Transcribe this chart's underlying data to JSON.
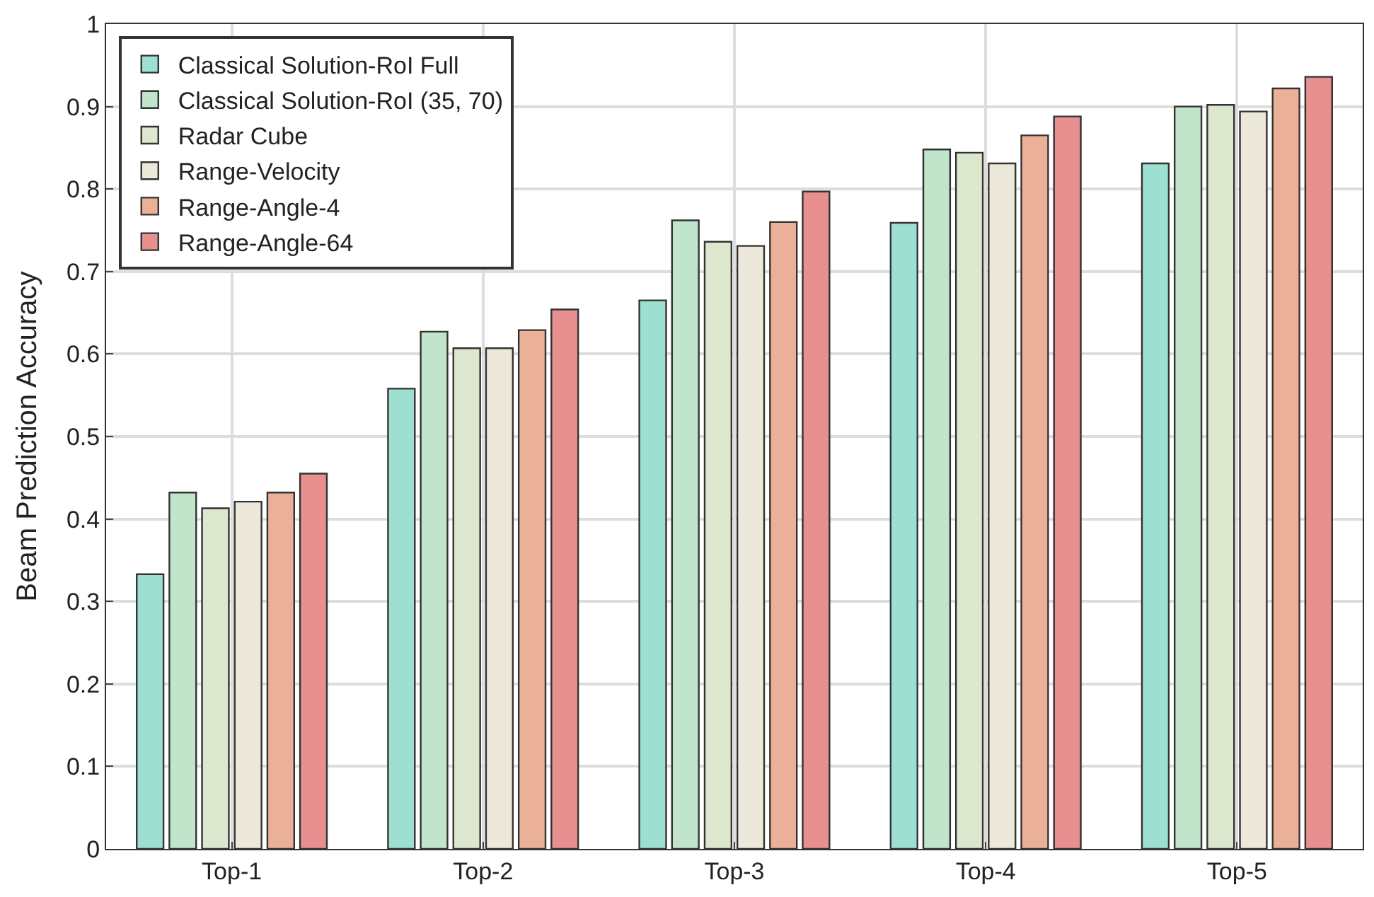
{
  "chart_data": {
    "type": "bar",
    "ylabel": "Beam Prediction Accuracy",
    "categories": [
      "Top-1",
      "Top-2",
      "Top-3",
      "Top-4",
      "Top-5"
    ],
    "series": [
      {
        "name": "Classical Solution-RoI Full",
        "color": "#9de0d2",
        "values": [
          0.333,
          0.558,
          0.665,
          0.759,
          0.831
        ]
      },
      {
        "name": "Classical Solution-RoI (35, 70)",
        "color": "#c0e5cb",
        "values": [
          0.432,
          0.627,
          0.762,
          0.848,
          0.9
        ]
      },
      {
        "name": "Radar Cube",
        "color": "#dce7cd",
        "values": [
          0.413,
          0.607,
          0.736,
          0.844,
          0.902
        ]
      },
      {
        "name": "Range-Velocity",
        "color": "#ece9da",
        "values": [
          0.421,
          0.607,
          0.731,
          0.831,
          0.894
        ]
      },
      {
        "name": "Range-Angle-4",
        "color": "#ebb098",
        "values": [
          0.432,
          0.629,
          0.76,
          0.865,
          0.922
        ]
      },
      {
        "name": "Range-Angle-64",
        "color": "#e89090",
        "values": [
          0.455,
          0.654,
          0.797,
          0.888,
          0.936
        ]
      }
    ],
    "ylim": [
      0,
      1
    ],
    "yticks": [
      0,
      0.1,
      0.2,
      0.3,
      0.4,
      0.5,
      0.6,
      0.7,
      0.8,
      0.9,
      1
    ],
    "grid": true,
    "legend": "top left"
  }
}
